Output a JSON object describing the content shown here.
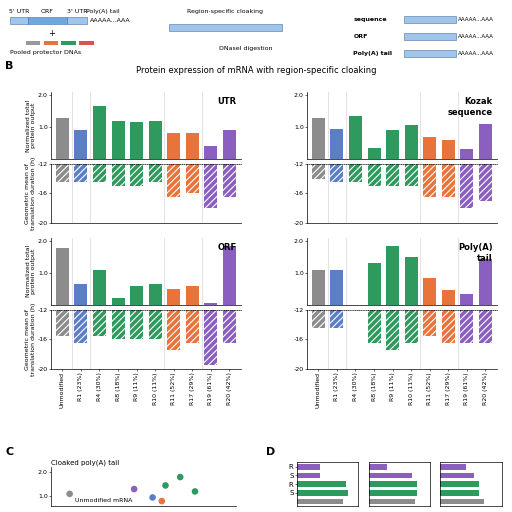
{
  "diagram": {
    "mrna_segments": [
      "5' UTR",
      "ORF",
      "3' UTR"
    ],
    "poly_a": "AAAAA...AAA",
    "poly_a_label": "Poly(A) tail",
    "plus": "+",
    "protectors": "Pooled protector DNAs",
    "cloaking": "Region-specific cloaking",
    "digestion": "DNaseI digestion",
    "regions": [
      "sequence",
      "ORF",
      "Poly(A) tail"
    ]
  },
  "panel_labels": [
    "B",
    "C",
    "D"
  ],
  "title": "Protein expression of mRNA with region-specific cloaking",
  "chart_data": [
    {
      "type": "bar",
      "title": "UTR",
      "ylabel": "Normalized total\nprotein output",
      "categories": [
        "Unmodified",
        "R1 (23%)",
        "R4 (30%)",
        "R8 (18%)",
        "R9 (11%)",
        "R10 (11%)",
        "R11 (52%)",
        "R17 (29%)",
        "R19 (61%)",
        "R20 (42%)"
      ],
      "colors": [
        "#8c8c8c",
        "#5b7fc7",
        "#2e9a5e",
        "#2e9a5e",
        "#2e9a5e",
        "#2e9a5e",
        "#e8743b",
        "#e8743b",
        "#8b5fbf",
        "#8b5fbf"
      ],
      "values": [
        1.3,
        0.9,
        1.65,
        1.2,
        1.15,
        1.2,
        0.8,
        0.8,
        0.4,
        0.9
      ],
      "ylim": [
        0,
        2.1
      ],
      "yticks": [
        {
          "value": 1,
          "label": "1.0"
        },
        {
          "value": 2,
          "label": "2.0"
        }
      ],
      "tick_labels": "y"
    },
    {
      "type": "bar",
      "ylabel": "Geometric mean of\ntranslation duration (h)",
      "categories": [
        "Unmodified",
        "R1 (23%)",
        "R4 (30%)",
        "R8 (18%)",
        "R9 (11%)",
        "R10 (11%)",
        "R11 (52%)",
        "R17 (29%)",
        "R19 (61%)",
        "R20 (42%)"
      ],
      "colors": [
        "#8c8c8c",
        "#5b7fc7",
        "#2e9a5e",
        "#2e9a5e",
        "#2e9a5e",
        "#2e9a5e",
        "#e8743b",
        "#e8743b",
        "#8b5fbf",
        "#8b5fbf"
      ],
      "values": [
        -14.5,
        -14.5,
        -14.5,
        -15,
        -15,
        -14.5,
        -16.5,
        -16,
        -18,
        -16.5
      ],
      "ylim": [
        -20,
        -12
      ],
      "yticks": [
        -20,
        -16,
        -12
      ],
      "tick_labels": "y"
    },
    {
      "type": "bar",
      "title": "Kozak\nsequence",
      "categories": [
        "Unmodified",
        "R1 (23%)",
        "R4 (30%)",
        "R8 (18%)",
        "R9 (11%)",
        "R10 (11%)",
        "R11 (52%)",
        "R17 (29%)",
        "R19 (61%)",
        "R20 (42%)"
      ],
      "colors": [
        "#8c8c8c",
        "#5b7fc7",
        "#2e9a5e",
        "#2e9a5e",
        "#2e9a5e",
        "#2e9a5e",
        "#e8743b",
        "#e8743b",
        "#8b5fbf",
        "#8b5fbf"
      ],
      "values": [
        1.3,
        0.95,
        1.35,
        0.35,
        0.9,
        1.05,
        0.7,
        0.6,
        0.3,
        1.1
      ],
      "ylim": [
        0,
        2.1
      ],
      "yticks": [
        {
          "value": 1,
          "label": "1.0"
        },
        {
          "value": 2,
          "label": "2.0"
        }
      ],
      "tick_labels": "y"
    },
    {
      "type": "bar",
      "categories": [
        "Unmodified",
        "R1 (23%)",
        "R4 (30%)",
        "R8 (18%)",
        "R9 (11%)",
        "R10 (11%)",
        "R11 (52%)",
        "R17 (29%)",
        "R19 (61%)",
        "R20 (42%)"
      ],
      "colors": [
        "#8c8c8c",
        "#5b7fc7",
        "#2e9a5e",
        "#2e9a5e",
        "#2e9a5e",
        "#2e9a5e",
        "#e8743b",
        "#e8743b",
        "#8b5fbf",
        "#8b5fbf"
      ],
      "values": [
        -14,
        -14.5,
        -14.5,
        -15,
        -15,
        -15,
        -16.5,
        -16.5,
        -18,
        -17
      ],
      "ylim": [
        -20,
        -12
      ],
      "yticks": [
        -20,
        -16,
        -12
      ],
      "tick_labels": "y"
    },
    {
      "type": "bar",
      "title": "ORF",
      "ylabel": "Normalized total\nprotein output",
      "categories": [
        "Unmodified",
        "R1 (23%)",
        "R4 (30%)",
        "R8 (18%)",
        "R9 (11%)",
        "R10 (11%)",
        "R11 (52%)",
        "R17 (29%)",
        "R19 (61%)",
        "R20 (42%)"
      ],
      "colors": [
        "#8c8c8c",
        "#5b7fc7",
        "#2e9a5e",
        "#2e9a5e",
        "#2e9a5e",
        "#2e9a5e",
        "#e8743b",
        "#e8743b",
        "#8b5fbf",
        "#8b5fbf"
      ],
      "values": [
        1.8,
        0.65,
        1.1,
        0.2,
        0.6,
        0.65,
        0.5,
        0.6,
        0.05,
        1.85
      ],
      "ylim": [
        0,
        2.1
      ],
      "yticks": [
        {
          "value": 1,
          "label": "1.0"
        },
        {
          "value": 2,
          "label": "2.0"
        }
      ],
      "tick_labels": "y"
    },
    {
      "type": "bar",
      "ylabel": "Geometric mean of\ntranslation duration (h)",
      "categories": [
        "Unmodified",
        "R1 (23%)",
        "R4 (30%)",
        "R8 (18%)",
        "R9 (11%)",
        "R10 (11%)",
        "R11 (52%)",
        "R17 (29%)",
        "R19 (61%)",
        "R20 (42%)"
      ],
      "colors": [
        "#8c8c8c",
        "#5b7fc7",
        "#2e9a5e",
        "#2e9a5e",
        "#2e9a5e",
        "#2e9a5e",
        "#e8743b",
        "#e8743b",
        "#8b5fbf",
        "#8b5fbf"
      ],
      "values": [
        -15.5,
        -16.5,
        -15.5,
        -16,
        -16,
        -16,
        -17.5,
        -16.5,
        -19.5,
        -16.5
      ],
      "ylim": [
        -20,
        -12
      ],
      "yticks": [
        -20,
        -16,
        -12
      ],
      "tick_labels": true
    },
    {
      "type": "bar",
      "title": "Poly(A)\ntail",
      "categories": [
        "Unmodified",
        "R1 (23%)",
        "R4 (30%)",
        "R8 (18%)",
        "R9 (11%)",
        "R10 (11%)",
        "R11 (52%)",
        "R17 (29%)",
        "R19 (61%)",
        "R20 (42%)"
      ],
      "colors": [
        "#8c8c8c",
        "#5b7fc7",
        "#2e9a5e",
        "#2e9a5e",
        "#2e9a5e",
        "#2e9a5e",
        "#e8743b",
        "#e8743b",
        "#8b5fbf",
        "#8b5fbf"
      ],
      "values": [
        1.1,
        1.1,
        0,
        1.3,
        1.85,
        1.5,
        0.85,
        0.45,
        0.35,
        1.45
      ],
      "ylim": [
        0,
        2.1
      ],
      "yticks": [
        {
          "value": 1,
          "label": "1.0"
        },
        {
          "value": 2,
          "label": "2.0"
        }
      ],
      "tick_labels": "y"
    },
    {
      "type": "bar",
      "categories": [
        "Unmodified",
        "R1 (23%)",
        "R4 (30%)",
        "R8 (18%)",
        "R9 (11%)",
        "R10 (11%)",
        "R11 (52%)",
        "R17 (29%)",
        "R19 (61%)",
        "R20 (42%)"
      ],
      "colors": [
        "#8c8c8c",
        "#5b7fc7",
        "#2e9a5e",
        "#2e9a5e",
        "#2e9a5e",
        "#2e9a5e",
        "#e8743b",
        "#e8743b",
        "#8b5fbf",
        "#8b5fbf"
      ],
      "values": [
        -14.5,
        -14.5,
        null,
        -16.5,
        -17.5,
        -16.5,
        -15.5,
        -16.5,
        -16.5,
        -16.5
      ],
      "ylim": [
        -20,
        -12
      ],
      "yticks": [
        -20,
        -16,
        -12
      ],
      "tick_labels": true
    },
    {
      "type": "scatter",
      "title": "Cloaked poly(A) tail",
      "x": [
        0.1,
        0.45,
        0.55,
        0.62,
        0.7,
        0.78,
        0.6
      ],
      "values": [
        1.1,
        1.3,
        0.95,
        1.45,
        1.8,
        1.2,
        0.8
      ],
      "colors": [
        "#8c8c8c",
        "#8b5fbf",
        "#5b7fc7",
        "#2e9a5e",
        "#2e9a5e",
        "#2e9a5e",
        "#e8743b"
      ],
      "xlim": [
        0,
        1
      ],
      "ylim": [
        0.6,
        2.2
      ],
      "yticks": [
        {
          "value": 1,
          "label": "1.0"
        },
        {
          "value": 2,
          "label": "2.0"
        }
      ],
      "tick_labels": "y",
      "annotations": [
        {
          "text": "Unmodified mRNA",
          "index": 0
        }
      ]
    },
    {
      "type": "bar",
      "orientation": "horizontal",
      "categories": [
        "R",
        "S",
        "R",
        "S",
        null
      ],
      "colors": [
        "#8b5fbf",
        "#8b5fbf",
        "#2e9a5e",
        "#2e9a5e",
        "#8c8c8c"
      ],
      "values": [
        0.45,
        0.45,
        0.95,
        1.0,
        0.9
      ],
      "xlim": [
        0,
        1.2
      ],
      "tick_labels": "y"
    },
    {
      "type": "bar",
      "orientation": "horizontal",
      "categories": [
        "R",
        "S",
        "R",
        "S",
        null
      ],
      "colors": [
        "#8b5fbf",
        "#8b5fbf",
        "#2e9a5e",
        "#2e9a5e",
        "#8c8c8c"
      ],
      "values": [
        0.35,
        0.85,
        0.95,
        0.95,
        0.9
      ],
      "xlim": [
        0,
        1.2
      ],
      "tick_labels": false
    },
    {
      "type": "bar",
      "orientation": "horizontal",
      "categories": [
        "R",
        "S",
        "R",
        "S",
        null
      ],
      "colors": [
        "#8b5fbf",
        "#8b5fbf",
        "#2e9a5e",
        "#2e9a5e",
        "#8c8c8c"
      ],
      "values": [
        0.5,
        0.65,
        0.75,
        0.75,
        0.85
      ],
      "xlim": [
        0,
        1.2
      ],
      "tick_labels": false
    }
  ]
}
